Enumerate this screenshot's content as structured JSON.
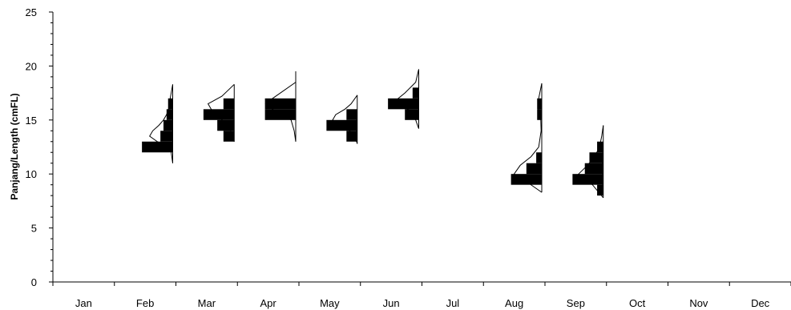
{
  "chart_data": {
    "type": "histogram-by-month",
    "title": "",
    "xlabel": "",
    "ylabel": "Panjang/Length (cmFL)",
    "ylim": [
      0,
      25
    ],
    "yticks": [
      0,
      5,
      10,
      15,
      20,
      25
    ],
    "categories": [
      "Jan",
      "Feb",
      "Mar",
      "Apr",
      "May",
      "Jun",
      "Jul",
      "Aug",
      "Sep",
      "Oct",
      "Nov",
      "Dec"
    ],
    "grid": false,
    "legend": "none",
    "bar_color": "#000000",
    "curve_color": "#000000",
    "months": [
      {
        "month": "Feb",
        "bars": [
          {
            "length": 12.5,
            "freq": 1.0
          },
          {
            "length": 13.5,
            "freq": 0.4
          },
          {
            "length": 14.5,
            "freq": 0.3
          },
          {
            "length": 15.5,
            "freq": 0.2
          },
          {
            "length": 16.5,
            "freq": 0.15
          }
        ],
        "curve": [
          [
            11.0,
            0.0
          ],
          [
            12.0,
            0.05
          ],
          [
            12.5,
            0.18
          ],
          [
            13.0,
            0.5
          ],
          [
            13.5,
            0.75
          ],
          [
            14.0,
            0.65
          ],
          [
            14.5,
            0.45
          ],
          [
            15.0,
            0.3
          ],
          [
            15.5,
            0.2
          ],
          [
            16.0,
            0.13
          ],
          [
            17.0,
            0.08
          ],
          [
            18.3,
            0.0
          ]
        ]
      },
      {
        "month": "Mar",
        "bars": [
          {
            "length": 13.5,
            "freq": 0.35
          },
          {
            "length": 14.5,
            "freq": 0.55
          },
          {
            "length": 15.5,
            "freq": 1.0
          },
          {
            "length": 16.5,
            "freq": 0.35
          }
        ],
        "curve": [
          [
            13.0,
            0.0
          ],
          [
            13.8,
            0.08
          ],
          [
            14.5,
            0.2
          ],
          [
            15.0,
            0.4
          ],
          [
            15.5,
            0.6
          ],
          [
            16.0,
            0.75
          ],
          [
            16.5,
            0.85
          ],
          [
            17.2,
            0.4
          ],
          [
            18.3,
            0.0
          ]
        ]
      },
      {
        "month": "Apr",
        "bars": [
          {
            "length": 15.5,
            "freq": 1.0
          },
          {
            "length": 16.5,
            "freq": 1.0
          }
        ],
        "curve": [
          [
            13.0,
            0.0
          ],
          [
            14.0,
            0.05
          ],
          [
            15.0,
            0.15
          ],
          [
            15.5,
            0.45
          ],
          [
            16.0,
            0.75
          ],
          [
            16.5,
            0.98
          ],
          [
            17.0,
            0.75
          ],
          [
            18.5,
            0.0
          ],
          [
            19.5,
            0.0
          ]
        ]
      },
      {
        "month": "May",
        "bars": [
          {
            "length": 13.5,
            "freq": 0.35
          },
          {
            "length": 14.5,
            "freq": 1.0
          },
          {
            "length": 15.5,
            "freq": 0.35
          }
        ],
        "curve": [
          [
            12.8,
            0.0
          ],
          [
            13.5,
            0.08
          ],
          [
            14.5,
            0.4
          ],
          [
            15.0,
            0.8
          ],
          [
            15.5,
            0.7
          ],
          [
            16.0,
            0.4
          ],
          [
            16.5,
            0.2
          ],
          [
            17.3,
            0.0
          ]
        ]
      },
      {
        "month": "Jun",
        "bars": [
          {
            "length": 15.5,
            "freq": 0.45
          },
          {
            "length": 16.5,
            "freq": 1.0
          },
          {
            "length": 17.5,
            "freq": 0.2
          }
        ],
        "curve": [
          [
            14.2,
            0.0
          ],
          [
            15.0,
            0.1
          ],
          [
            16.0,
            0.35
          ],
          [
            16.8,
            0.75
          ],
          [
            17.5,
            0.45
          ],
          [
            18.5,
            0.1
          ],
          [
            19.7,
            0.0
          ]
        ]
      },
      {
        "month": "Aug",
        "bars": [
          {
            "length": 9.5,
            "freq": 1.0
          },
          {
            "length": 10.5,
            "freq": 0.5
          },
          {
            "length": 11.5,
            "freq": 0.18
          },
          {
            "length": 15.5,
            "freq": 0.15
          },
          {
            "length": 16.5,
            "freq": 0.15
          }
        ],
        "curve": [
          [
            8.3,
            0.0
          ],
          [
            9.2,
            0.45
          ],
          [
            10.0,
            0.9
          ],
          [
            10.8,
            0.7
          ],
          [
            11.6,
            0.35
          ],
          [
            12.5,
            0.1
          ],
          [
            14.0,
            0.02
          ],
          [
            15.0,
            0.03
          ],
          [
            16.0,
            0.1
          ],
          [
            17.0,
            0.1
          ],
          [
            18.4,
            0.0
          ]
        ]
      },
      {
        "month": "Sep",
        "bars": [
          {
            "length": 8.5,
            "freq": 0.2
          },
          {
            "length": 9.5,
            "freq": 1.0
          },
          {
            "length": 10.5,
            "freq": 0.6
          },
          {
            "length": 11.5,
            "freq": 0.45
          },
          {
            "length": 12.5,
            "freq": 0.2
          }
        ],
        "curve": [
          [
            7.8,
            0.0
          ],
          [
            9.0,
            0.35
          ],
          [
            10.0,
            0.8
          ],
          [
            10.7,
            0.55
          ],
          [
            11.5,
            0.3
          ],
          [
            12.5,
            0.12
          ],
          [
            13.5,
            0.05
          ],
          [
            14.5,
            0.0
          ]
        ]
      }
    ]
  }
}
